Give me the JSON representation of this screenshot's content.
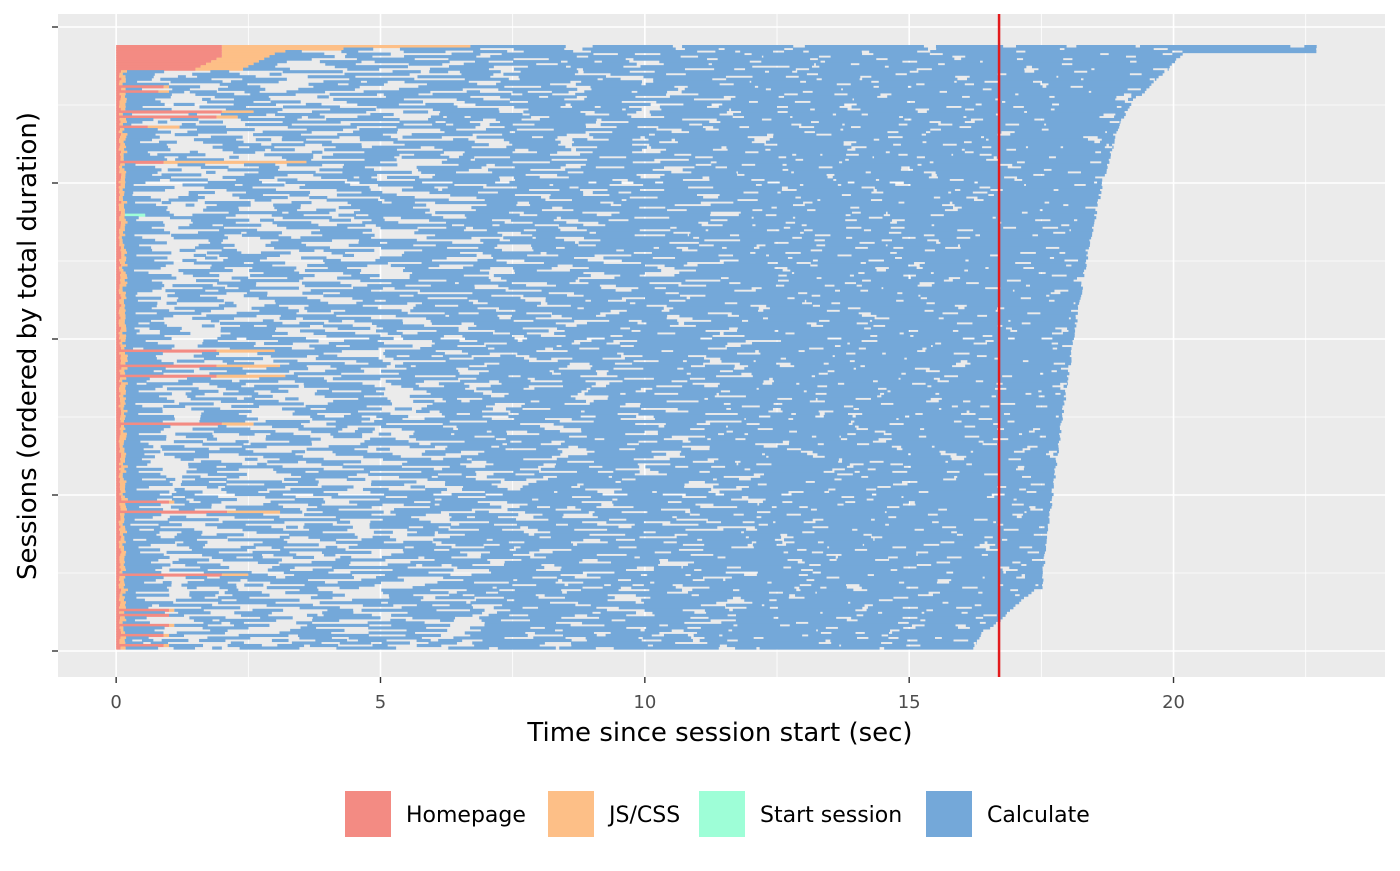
{
  "chart_data": {
    "type": "gantt",
    "title": "",
    "xlabel": "Time since session start (sec)",
    "ylabel": "Sessions (ordered by total duration)",
    "xlim": [
      -1.1,
      24
    ],
    "x_ticks": [
      0,
      5,
      10,
      15,
      20
    ],
    "x_tick_labels": [
      "0",
      "5",
      "10",
      "15",
      "20"
    ],
    "y_ticks": "unlabeled",
    "grid": true,
    "legend_position": "bottom",
    "reference_line": {
      "x": 16.7,
      "color": "#e31a1c"
    },
    "session_count": 240,
    "series": [
      {
        "name": "Homepage",
        "color": "#f38b83"
      },
      {
        "name": "JS/CSS",
        "color": "#fdbf87"
      },
      {
        "name": "Start session",
        "color": "#9efed7"
      },
      {
        "name": "Calculate",
        "color": "#74a8d9"
      }
    ],
    "sessions_summary": [
      {
        "rank": "longest",
        "homepage_end": 2.0,
        "jscss_end": 6.7,
        "end": 22.7
      },
      {
        "rank": "median",
        "homepage_end": 0.1,
        "jscss_end": 0.2,
        "end": 18.0
      },
      {
        "rank": "shortest",
        "homepage_end": 0.9,
        "jscss_end": 1.0,
        "end": 16.5
      }
    ]
  }
}
